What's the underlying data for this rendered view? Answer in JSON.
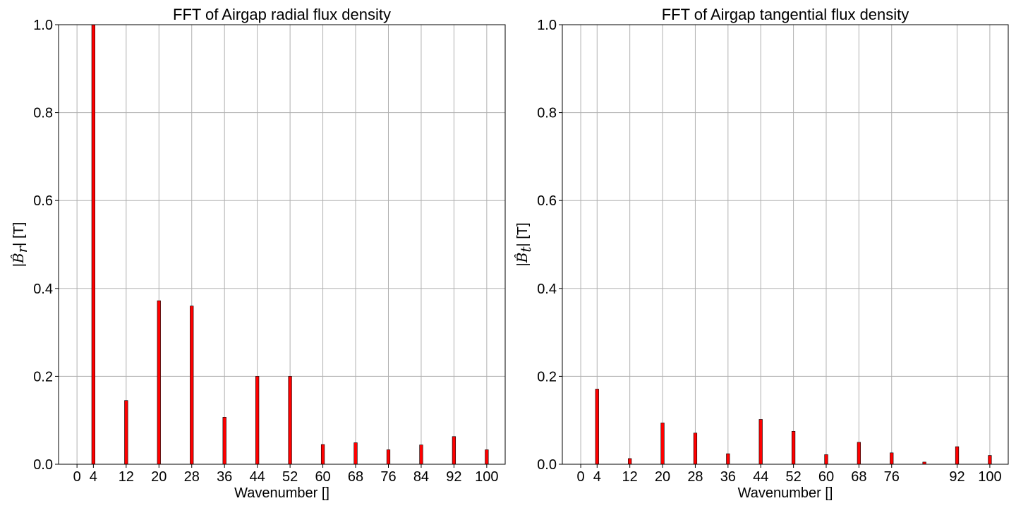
{
  "chart_data": [
    {
      "type": "bar",
      "title": "FFT of Airgap radial flux density",
      "xlabel": "Wavenumber []",
      "ylabel": "|B̂r| [T]",
      "ylabel_symbol": "B",
      "ylabel_subscript": "r",
      "ylabel_unit": "[T]",
      "xlim": [
        -4.5,
        104.5
      ],
      "ylim": [
        0,
        1.0
      ],
      "xticks": [
        0,
        4,
        12,
        20,
        28,
        36,
        44,
        52,
        60,
        68,
        76,
        84,
        92,
        100
      ],
      "yticks": [
        0.0,
        0.2,
        0.4,
        0.6,
        0.8,
        1.0
      ],
      "ytick_labels": [
        "0.0",
        "0.2",
        "0.4",
        "0.6",
        "0.8",
        "1.0"
      ],
      "grid": true,
      "x": [
        4,
        12,
        20,
        28,
        36,
        44,
        52,
        60,
        68,
        76,
        84,
        92,
        100
      ],
      "values": [
        1.0,
        0.145,
        0.372,
        0.36,
        0.107,
        0.2,
        0.2,
        0.045,
        0.049,
        0.033,
        0.044,
        0.063,
        0.033
      ]
    },
    {
      "type": "bar",
      "title": "FFT of Airgap tangential flux density",
      "xlabel": "Wavenumber []",
      "ylabel": "|B̂t| [T]",
      "ylabel_symbol": "B",
      "ylabel_subscript": "t",
      "ylabel_unit": "[T]",
      "xlim": [
        -4.5,
        104.5
      ],
      "ylim": [
        0,
        1.0
      ],
      "xticks": [
        0,
        4,
        12,
        20,
        28,
        36,
        44,
        52,
        60,
        68,
        76,
        92,
        100
      ],
      "yticks": [
        0.0,
        0.2,
        0.4,
        0.6,
        0.8,
        1.0
      ],
      "ytick_labels": [
        "0.0",
        "0.2",
        "0.4",
        "0.6",
        "0.8",
        "1.0"
      ],
      "grid": true,
      "x": [
        4,
        12,
        20,
        28,
        36,
        44,
        52,
        60,
        68,
        76,
        84,
        92,
        100
      ],
      "values": [
        0.171,
        0.013,
        0.094,
        0.071,
        0.024,
        0.102,
        0.075,
        0.022,
        0.05,
        0.026,
        0.005,
        0.04,
        0.02
      ]
    }
  ]
}
